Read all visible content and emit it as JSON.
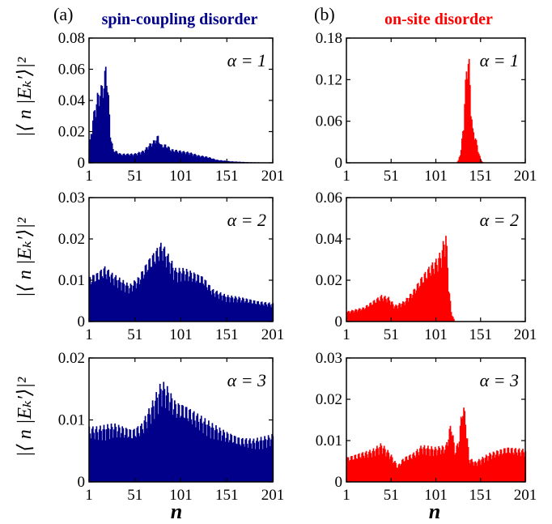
{
  "panel_labels": [
    "(a)",
    "(b)"
  ],
  "column_titles": [
    "spin-coupling disorder",
    "on-site disorder"
  ],
  "ylabel": "|⟨ n |Eₖ′⟩|²",
  "xlabel": "n",
  "colors": {
    "left": "#00008b",
    "right": "#ff0000",
    "axis": "#000000"
  },
  "chart_data": [
    {
      "panel": "a",
      "type": "bar",
      "annotation": "α = 1",
      "xlim": [
        1,
        201
      ],
      "ylim": [
        0,
        0.08
      ],
      "xticks": [
        "1",
        "51",
        "101",
        "151",
        "201"
      ],
      "yticks": [
        "0",
        "0.02",
        "0.04",
        "0.06",
        "0.08"
      ],
      "profile": [
        [
          1,
          0.01
        ],
        [
          5,
          0.03
        ],
        [
          10,
          0.045
        ],
        [
          14,
          0.05
        ],
        [
          17,
          0.055
        ],
        [
          19,
          0.064
        ],
        [
          20,
          0.062
        ],
        [
          22,
          0.044
        ],
        [
          24,
          0.02
        ],
        [
          27,
          0.009
        ],
        [
          35,
          0.006
        ],
        [
          50,
          0.006
        ],
        [
          60,
          0.008
        ],
        [
          66,
          0.012
        ],
        [
          72,
          0.015
        ],
        [
          76,
          0.018
        ],
        [
          79,
          0.012
        ],
        [
          85,
          0.012
        ],
        [
          90,
          0.009
        ],
        [
          100,
          0.008
        ],
        [
          110,
          0.007
        ],
        [
          120,
          0.005
        ],
        [
          130,
          0.004
        ],
        [
          140,
          0.002
        ],
        [
          155,
          0.001
        ],
        [
          175,
          0.0004
        ],
        [
          201,
          0.0002
        ]
      ]
    },
    {
      "panel": "b",
      "type": "bar",
      "annotation": "α = 1",
      "xlim": [
        1,
        201
      ],
      "ylim": [
        0,
        0.18
      ],
      "xticks": [
        "1",
        "51",
        "101",
        "151",
        "201"
      ],
      "yticks": [
        "0",
        "0.06",
        "0.12",
        "0.18"
      ],
      "profile": [
        [
          1,
          0
        ],
        [
          124,
          0
        ],
        [
          126,
          0.004
        ],
        [
          129,
          0.02
        ],
        [
          132,
          0.065
        ],
        [
          134,
          0.12
        ],
        [
          136,
          0.165
        ],
        [
          138,
          0.15
        ],
        [
          140,
          0.09
        ],
        [
          142,
          0.05
        ],
        [
          145,
          0.04
        ],
        [
          148,
          0.02
        ],
        [
          151,
          0.005
        ],
        [
          154,
          0
        ],
        [
          201,
          0
        ]
      ]
    },
    {
      "panel": "a",
      "type": "bar",
      "annotation": "α = 2",
      "xlim": [
        1,
        201
      ],
      "ylim": [
        0,
        0.03
      ],
      "xticks": [
        "1",
        "51",
        "101",
        "151",
        "201"
      ],
      "yticks": [
        "0",
        "0.01",
        "0.02",
        "0.03"
      ],
      "profile": [
        [
          1,
          0.011
        ],
        [
          10,
          0.012
        ],
        [
          18,
          0.0135
        ],
        [
          25,
          0.012
        ],
        [
          35,
          0.0105
        ],
        [
          45,
          0.009
        ],
        [
          55,
          0.011
        ],
        [
          65,
          0.015
        ],
        [
          75,
          0.018
        ],
        [
          80,
          0.0195
        ],
        [
          88,
          0.016
        ],
        [
          95,
          0.013
        ],
        [
          105,
          0.013
        ],
        [
          115,
          0.012
        ],
        [
          125,
          0.011
        ],
        [
          135,
          0.008
        ],
        [
          150,
          0.0065
        ],
        [
          165,
          0.006
        ],
        [
          185,
          0.005
        ],
        [
          201,
          0.0045
        ]
      ]
    },
    {
      "panel": "b",
      "type": "bar",
      "annotation": "α = 2",
      "xlim": [
        1,
        201
      ],
      "ylim": [
        0,
        0.06
      ],
      "xticks": [
        "1",
        "51",
        "101",
        "151",
        "201"
      ],
      "yticks": [
        "0",
        "0.02",
        "0.04",
        "0.06"
      ],
      "profile": [
        [
          1,
          0.005
        ],
        [
          20,
          0.007
        ],
        [
          30,
          0.01
        ],
        [
          40,
          0.013
        ],
        [
          48,
          0.012
        ],
        [
          55,
          0.008
        ],
        [
          65,
          0.01
        ],
        [
          75,
          0.015
        ],
        [
          85,
          0.022
        ],
        [
          95,
          0.028
        ],
        [
          102,
          0.031
        ],
        [
          107,
          0.035
        ],
        [
          112,
          0.045
        ],
        [
          115,
          0.02
        ],
        [
          118,
          0.005
        ],
        [
          122,
          0
        ],
        [
          201,
          0
        ]
      ]
    },
    {
      "panel": "a",
      "type": "bar",
      "annotation": "α = 3",
      "xlim": [
        1,
        201
      ],
      "ylim": [
        0,
        0.02
      ],
      "xticks": [
        "1",
        "51",
        "101",
        "151",
        "201"
      ],
      "yticks": [
        "0",
        "0.01",
        "0.02"
      ],
      "profile": [
        [
          1,
          0.009
        ],
        [
          10,
          0.009
        ],
        [
          20,
          0.0093
        ],
        [
          28,
          0.0095
        ],
        [
          38,
          0.009
        ],
        [
          48,
          0.0085
        ],
        [
          58,
          0.0095
        ],
        [
          68,
          0.0125
        ],
        [
          74,
          0.0145
        ],
        [
          80,
          0.0165
        ],
        [
          86,
          0.0155
        ],
        [
          95,
          0.013
        ],
        [
          105,
          0.0125
        ],
        [
          115,
          0.0115
        ],
        [
          125,
          0.0105
        ],
        [
          135,
          0.0095
        ],
        [
          150,
          0.0082
        ],
        [
          165,
          0.0072
        ],
        [
          180,
          0.007
        ],
        [
          195,
          0.0075
        ],
        [
          201,
          0.0078
        ]
      ]
    },
    {
      "panel": "b",
      "type": "bar",
      "annotation": "α = 3",
      "xlim": [
        1,
        201
      ],
      "ylim": [
        0,
        0.03
      ],
      "xticks": [
        "1",
        "51",
        "101",
        "151",
        "201"
      ],
      "yticks": [
        "0",
        "0.01",
        "0.02",
        "0.03"
      ],
      "profile": [
        [
          1,
          0.006
        ],
        [
          15,
          0.007
        ],
        [
          30,
          0.008
        ],
        [
          40,
          0.0095
        ],
        [
          50,
          0.007
        ],
        [
          58,
          0.004
        ],
        [
          65,
          0.006
        ],
        [
          75,
          0.007
        ],
        [
          85,
          0.009
        ],
        [
          100,
          0.0085
        ],
        [
          112,
          0.009
        ],
        [
          118,
          0.015
        ],
        [
          122,
          0.008
        ],
        [
          126,
          0.01
        ],
        [
          131,
          0.02
        ],
        [
          134,
          0.016
        ],
        [
          138,
          0.006
        ],
        [
          145,
          0.005
        ],
        [
          160,
          0.007
        ],
        [
          180,
          0.0085
        ],
        [
          201,
          0.008
        ]
      ]
    }
  ]
}
